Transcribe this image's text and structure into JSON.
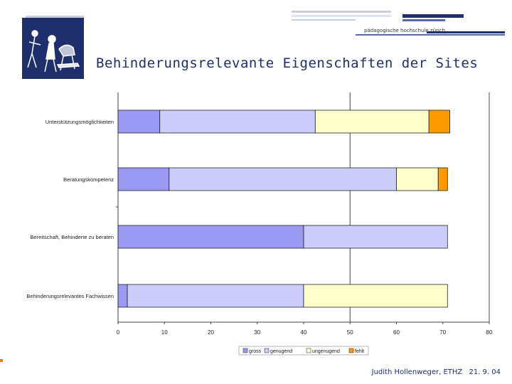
{
  "slide": {
    "title": "Behinderungsrelevante Eigenschaften der Sites",
    "institution": "pädagogische hochschule zürich",
    "author": "Judith Hollenweger, ETHZ",
    "date": "21. 9. 04"
  },
  "colors": {
    "brand": "#1e2f6b",
    "gross": "#9a9af5",
    "genugend": "#ccccfa",
    "ungenugend": "#ffffcc",
    "fehlt": "#ff9900"
  },
  "chart_data": {
    "type": "bar",
    "orientation": "horizontal",
    "stacked": true,
    "title": "",
    "xlabel": "",
    "ylabel": "",
    "xlim": [
      0,
      80
    ],
    "xticks": [
      0,
      10,
      20,
      30,
      40,
      50,
      60,
      70,
      80
    ],
    "categories": [
      "Unterstützungsmöglichkeiten",
      "Beratungskompetenz",
      "Bereitschaft, Behinderte zu beraten",
      "Behinderungsrelevantes Fachwissen"
    ],
    "series": [
      {
        "name": "gross",
        "values": [
          9,
          11,
          40,
          2
        ]
      },
      {
        "name": "genugend",
        "values": [
          33.5,
          49,
          31,
          38
        ]
      },
      {
        "name": "ungenugend",
        "values": [
          24.5,
          9,
          0,
          31
        ]
      },
      {
        "name": "fehlt",
        "values": [
          4.5,
          2,
          0,
          0
        ]
      }
    ],
    "legend_position": "bottom"
  }
}
